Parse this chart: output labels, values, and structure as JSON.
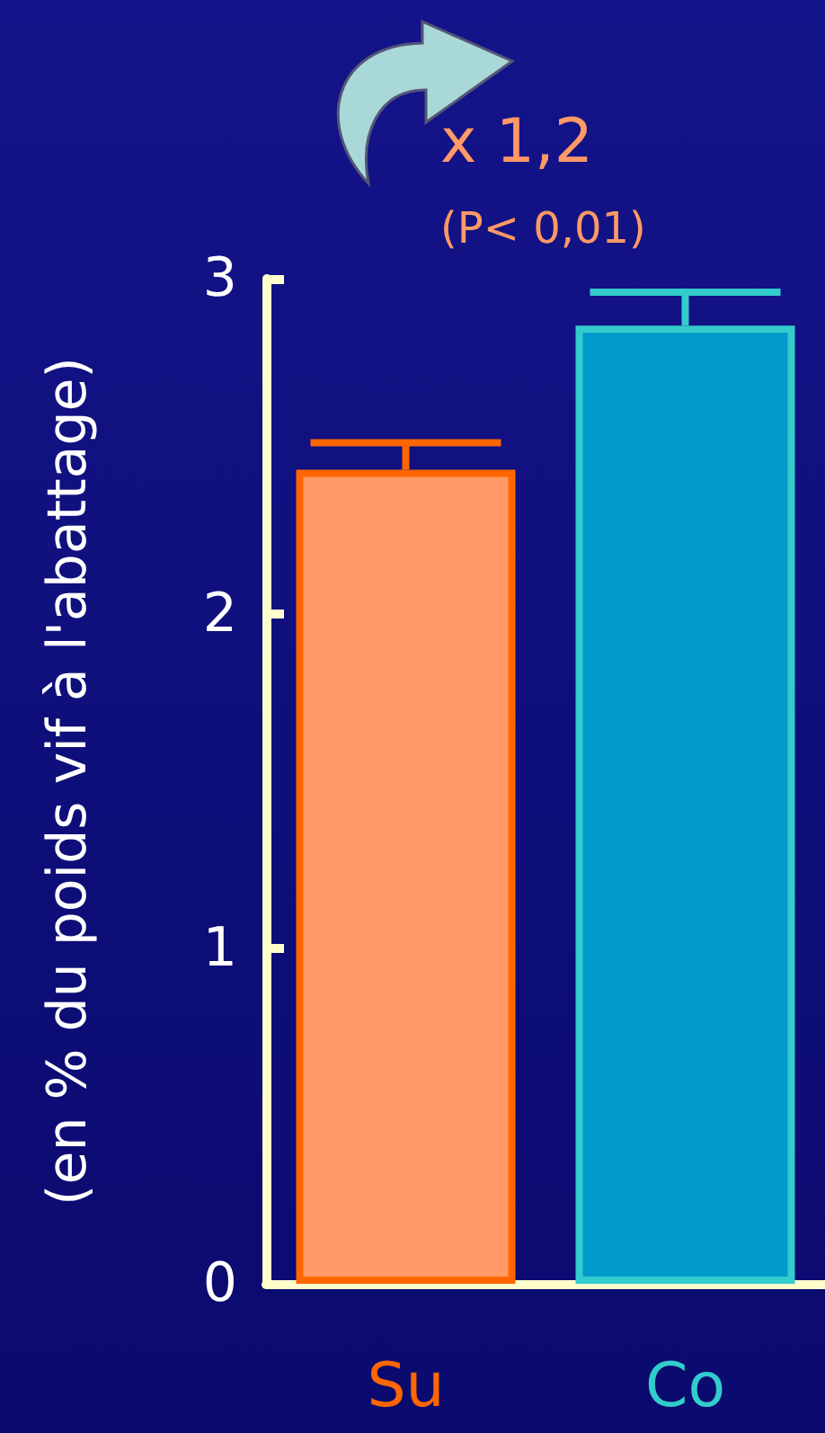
{
  "chart_data": {
    "type": "bar",
    "ylabel": "(en % du poids vif à l'abattage)",
    "categories": [
      "Su",
      "Co"
    ],
    "values": [
      2.43,
      2.86
    ],
    "colors": [
      "#ff9966",
      "#0099cc"
    ],
    "errors": [
      0.08,
      0.1
    ],
    "ylim": [
      0,
      3
    ],
    "yticks": [
      0,
      1,
      2,
      3
    ],
    "grid": false,
    "annotations": [
      "x 1,2",
      "(P< 0,01)"
    ]
  }
}
